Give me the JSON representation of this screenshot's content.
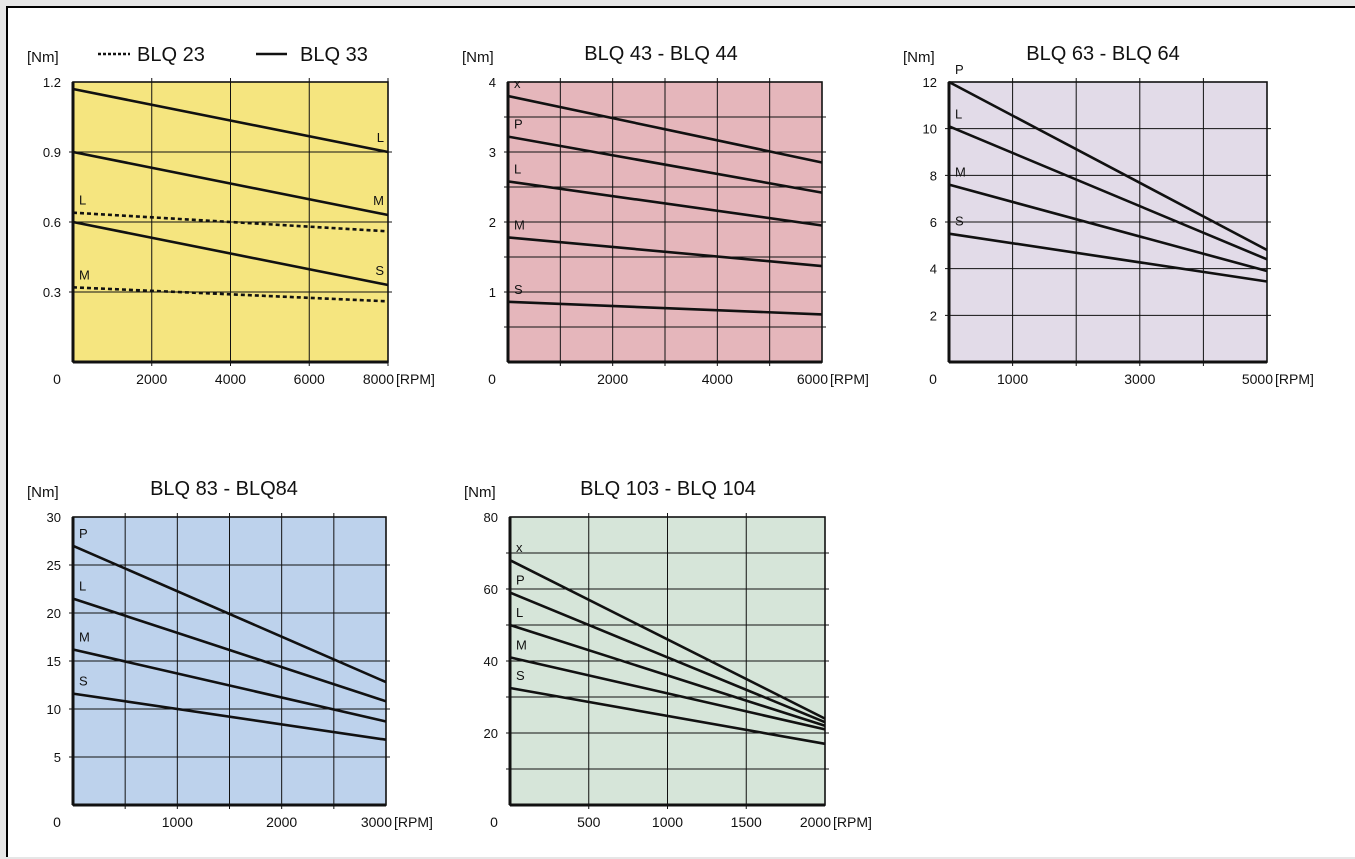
{
  "chart_data": [
    {
      "type": "line",
      "title": "",
      "y_unit": "[Nm]",
      "x_unit": "[RPM]",
      "origin_label": "0",
      "background": "#f5e57f",
      "x_range": [
        0,
        8000
      ],
      "y_range": [
        0,
        1.2
      ],
      "x_ticks": [
        2000,
        4000,
        6000,
        8000
      ],
      "x_tick_labels": [
        "2000",
        "4000",
        "6000",
        "8000"
      ],
      "y_ticks": [
        0.3,
        0.6,
        0.9,
        1.2
      ],
      "y_tick_labels": [
        "0.3",
        "0.6",
        "0.9",
        "1.2"
      ],
      "grid_x": [
        2000,
        4000,
        6000,
        8000
      ],
      "grid_y": [
        0.3,
        0.6,
        0.9
      ],
      "legend": [
        {
          "label": "BLQ 23",
          "style": "dashed"
        },
        {
          "label": "BLQ 33",
          "style": "solid"
        }
      ],
      "series": [
        {
          "label": "L",
          "motor": "BLQ 33",
          "style": "solid",
          "x": [
            0,
            8000
          ],
          "y": [
            1.17,
            0.9
          ],
          "label_end": "end"
        },
        {
          "label": "M",
          "motor": "BLQ 33",
          "style": "solid",
          "x": [
            0,
            8000
          ],
          "y": [
            0.9,
            0.63
          ],
          "label_end": "end"
        },
        {
          "label": "S",
          "motor": "BLQ 33",
          "style": "solid",
          "x": [
            0,
            8000
          ],
          "y": [
            0.6,
            0.33
          ],
          "label_end": "end"
        },
        {
          "label": "L",
          "motor": "BLQ 23",
          "style": "dashed",
          "x": [
            0,
            8000
          ],
          "y": [
            0.64,
            0.56
          ],
          "label_end": "start"
        },
        {
          "label": "M",
          "motor": "BLQ 23",
          "style": "dashed",
          "x": [
            0,
            8000
          ],
          "y": [
            0.32,
            0.26
          ],
          "label_end": "start"
        }
      ]
    },
    {
      "type": "line",
      "title": "BLQ 43 -  BLQ 44",
      "y_unit": "[Nm]",
      "x_unit": "[RPM]",
      "origin_label": "0",
      "background": "#e5b6bb",
      "x_range": [
        0,
        6000
      ],
      "y_range": [
        0,
        4
      ],
      "x_ticks": [
        2000,
        4000,
        6000
      ],
      "x_tick_labels": [
        "2000",
        "4000",
        "6000"
      ],
      "y_ticks": [
        1,
        2,
        3,
        4
      ],
      "y_tick_labels": [
        "1",
        "2",
        "3",
        "4"
      ],
      "grid_x": [
        1000,
        2000,
        3000,
        4000,
        5000
      ],
      "grid_y": [
        0.5,
        1,
        1.5,
        2,
        2.5,
        3,
        3.5
      ],
      "series": [
        {
          "label": "x",
          "x": [
            0,
            6000
          ],
          "y": [
            3.8,
            2.85
          ],
          "label_end": "start"
        },
        {
          "label": "P",
          "x": [
            0,
            6000
          ],
          "y": [
            3.22,
            2.42
          ],
          "label_end": "start"
        },
        {
          "label": "L",
          "x": [
            0,
            6000
          ],
          "y": [
            2.58,
            1.95
          ],
          "label_end": "start"
        },
        {
          "label": "M",
          "x": [
            0,
            6000
          ],
          "y": [
            1.78,
            1.37
          ],
          "label_end": "start"
        },
        {
          "label": "S",
          "x": [
            0,
            6000
          ],
          "y": [
            0.86,
            0.68
          ],
          "label_end": "start"
        }
      ]
    },
    {
      "type": "line",
      "title": "BLQ 63 -  BLQ 64",
      "y_unit": "[Nm]",
      "x_unit": "[RPM]",
      "origin_label": "0",
      "background": "#e2dbe8",
      "x_range": [
        0,
        5000
      ],
      "y_range": [
        0,
        12
      ],
      "x_ticks": [
        1000,
        3000,
        5000
      ],
      "x_tick_labels": [
        "1000",
        "3000",
        "5000"
      ],
      "y_ticks": [
        2,
        4,
        6,
        8,
        10,
        12
      ],
      "y_tick_labels": [
        "2",
        "4",
        "6",
        "8",
        "10",
        "12"
      ],
      "grid_x": [
        1000,
        2000,
        3000,
        4000
      ],
      "grid_y": [
        2,
        4,
        6,
        8,
        10
      ],
      "series": [
        {
          "label": "P",
          "x": [
            0,
            5000
          ],
          "y": [
            12,
            4.8
          ],
          "label_end": "start"
        },
        {
          "label": "L",
          "x": [
            0,
            5000
          ],
          "y": [
            10.1,
            4.4
          ],
          "label_end": "start"
        },
        {
          "label": "M",
          "x": [
            0,
            5000
          ],
          "y": [
            7.6,
            3.9
          ],
          "label_end": "start"
        },
        {
          "label": "S",
          "x": [
            0,
            5000
          ],
          "y": [
            5.5,
            3.45
          ],
          "label_end": "start"
        }
      ]
    },
    {
      "type": "line",
      "title": "BLQ  83 - BLQ84",
      "y_unit": "[Nm]",
      "x_unit": "[RPM]",
      "origin_label": "0",
      "background": "#bdd2ec",
      "x_range": [
        0,
        3000
      ],
      "y_range": [
        0,
        30
      ],
      "x_ticks": [
        1000,
        2000,
        3000
      ],
      "x_tick_labels": [
        "1000",
        "2000",
        "3000"
      ],
      "y_ticks": [
        5,
        10,
        15,
        20,
        25,
        30
      ],
      "y_tick_labels": [
        "5",
        "10",
        "15",
        "20",
        "25",
        "30"
      ],
      "grid_x": [
        500,
        1000,
        1500,
        2000,
        2500
      ],
      "grid_y": [
        5,
        10,
        15,
        20,
        25
      ],
      "series": [
        {
          "label": "P",
          "x": [
            0,
            3000
          ],
          "y": [
            27,
            12.8
          ],
          "label_end": "start"
        },
        {
          "label": "L",
          "x": [
            0,
            3000
          ],
          "y": [
            21.5,
            10.8
          ],
          "label_end": "start"
        },
        {
          "label": "M",
          "x": [
            0,
            3000
          ],
          "y": [
            16.2,
            8.7
          ],
          "label_end": "start"
        },
        {
          "label": "S",
          "x": [
            0,
            3000
          ],
          "y": [
            11.6,
            6.8
          ],
          "label_end": "start"
        }
      ]
    },
    {
      "type": "line",
      "title": "BLQ  103 - BLQ 104",
      "y_unit": "[Nm]",
      "x_unit": "[RPM]",
      "origin_label": "0",
      "background": "#d6e5d9",
      "x_range": [
        0,
        2000
      ],
      "y_range": [
        0,
        80
      ],
      "x_ticks": [
        500,
        1000,
        1500,
        2000
      ],
      "x_tick_labels": [
        "500",
        "1000",
        "1500",
        "2000"
      ],
      "y_ticks": [
        20,
        40,
        60,
        80
      ],
      "y_tick_labels": [
        "20",
        "40",
        "60",
        "80"
      ],
      "grid_x": [
        500,
        1000,
        1500
      ],
      "grid_y": [
        10,
        20,
        30,
        40,
        50,
        60,
        70
      ],
      "series": [
        {
          "label": "x",
          "x": [
            0,
            2000
          ],
          "y": [
            68,
            24
          ],
          "label_end": "start"
        },
        {
          "label": "P",
          "x": [
            0,
            2000
          ],
          "y": [
            59,
            23
          ],
          "label_end": "start"
        },
        {
          "label": "L",
          "x": [
            0,
            2000
          ],
          "y": [
            50,
            22
          ],
          "label_end": "start"
        },
        {
          "label": "M",
          "x": [
            0,
            2000
          ],
          "y": [
            41,
            21
          ],
          "label_end": "start"
        },
        {
          "label": "S",
          "x": [
            0,
            2000
          ],
          "y": [
            32.5,
            17
          ],
          "label_end": "start"
        }
      ]
    }
  ]
}
